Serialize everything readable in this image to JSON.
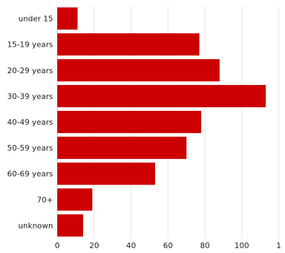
{
  "chart_data": {
    "type": "bar",
    "orientation": "horizontal",
    "categories": [
      "under 15",
      "15-19 years",
      "20-29 years",
      "30-39 years",
      "40-49 years",
      "50-59 years",
      "60-69 years",
      "70+",
      "unknown"
    ],
    "values": [
      11,
      77,
      88,
      113,
      78,
      70,
      53,
      19,
      14
    ],
    "x_ticks": [
      "0",
      "20",
      "40",
      "60",
      "80",
      "100",
      "1"
    ],
    "xlim": [
      0,
      120
    ],
    "grid": true,
    "legend": "none",
    "bar_color": "#cc0000"
  }
}
